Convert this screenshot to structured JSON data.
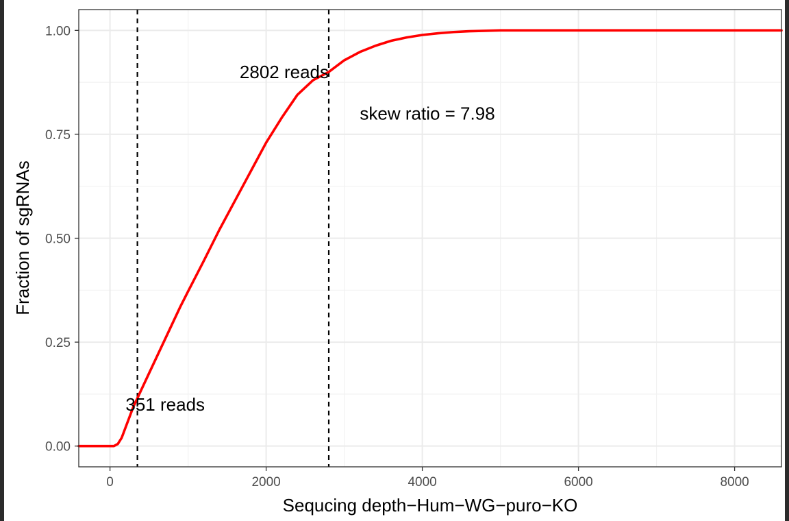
{
  "chart_data": {
    "type": "line",
    "title": "",
    "xlabel": "Sequcing depth−Hum−WG−puro−KO",
    "ylabel": "Fraction of sgRNAs",
    "xlim": [
      -400,
      8600
    ],
    "ylim": [
      -0.05,
      1.05
    ],
    "x_ticks": [
      {
        "value": 0,
        "label": "0"
      },
      {
        "value": 2000,
        "label": "2000"
      },
      {
        "value": 4000,
        "label": "4000"
      },
      {
        "value": 6000,
        "label": "6000"
      },
      {
        "value": 8000,
        "label": "8000"
      }
    ],
    "y_ticks": [
      {
        "value": 0,
        "label": "0.00"
      },
      {
        "value": 0.25,
        "label": "0.25"
      },
      {
        "value": 0.5,
        "label": "0.50"
      },
      {
        "value": 0.75,
        "label": "0.75"
      },
      {
        "value": 1,
        "label": "1.00"
      }
    ],
    "x_minor": [
      1000,
      3000,
      5000,
      7000
    ],
    "y_minor": [
      0.125,
      0.375,
      0.625,
      0.875
    ],
    "grid": true,
    "series": [
      {
        "color": "#ff0000",
        "x": [
          -400,
          0,
          50,
          100,
          150,
          200,
          250,
          300,
          351,
          400,
          500,
          600,
          700,
          800,
          900,
          1000,
          1200,
          1400,
          1600,
          1800,
          2000,
          2200,
          2400,
          2600,
          2802,
          3000,
          3200,
          3400,
          3600,
          3800,
          4000,
          4200,
          4400,
          4600,
          4800,
          5000,
          5500,
          6000,
          6500,
          7000,
          7500,
          8000,
          8600
        ],
        "y": [
          0.0,
          0.0,
          0.0,
          0.005,
          0.02,
          0.045,
          0.07,
          0.095,
          0.115,
          0.135,
          0.175,
          0.215,
          0.255,
          0.295,
          0.335,
          0.372,
          0.445,
          0.52,
          0.59,
          0.66,
          0.73,
          0.79,
          0.845,
          0.88,
          0.9,
          0.928,
          0.948,
          0.963,
          0.975,
          0.983,
          0.989,
          0.993,
          0.996,
          0.998,
          0.999,
          1.0,
          1.0,
          1.0,
          1.0,
          1.0,
          1.0,
          1.0,
          1.0
        ]
      }
    ],
    "vlines": [
      351,
      2802
    ],
    "annotations": [
      {
        "text": "351 reads",
        "x": 200,
        "y": 0.1,
        "anchor": "start"
      },
      {
        "text": "2802 reads",
        "x": 2802,
        "y": 0.9,
        "anchor": "end"
      },
      {
        "text": "skew ratio = 7.98",
        "x": 3200,
        "y": 0.8,
        "anchor": "start"
      }
    ]
  }
}
